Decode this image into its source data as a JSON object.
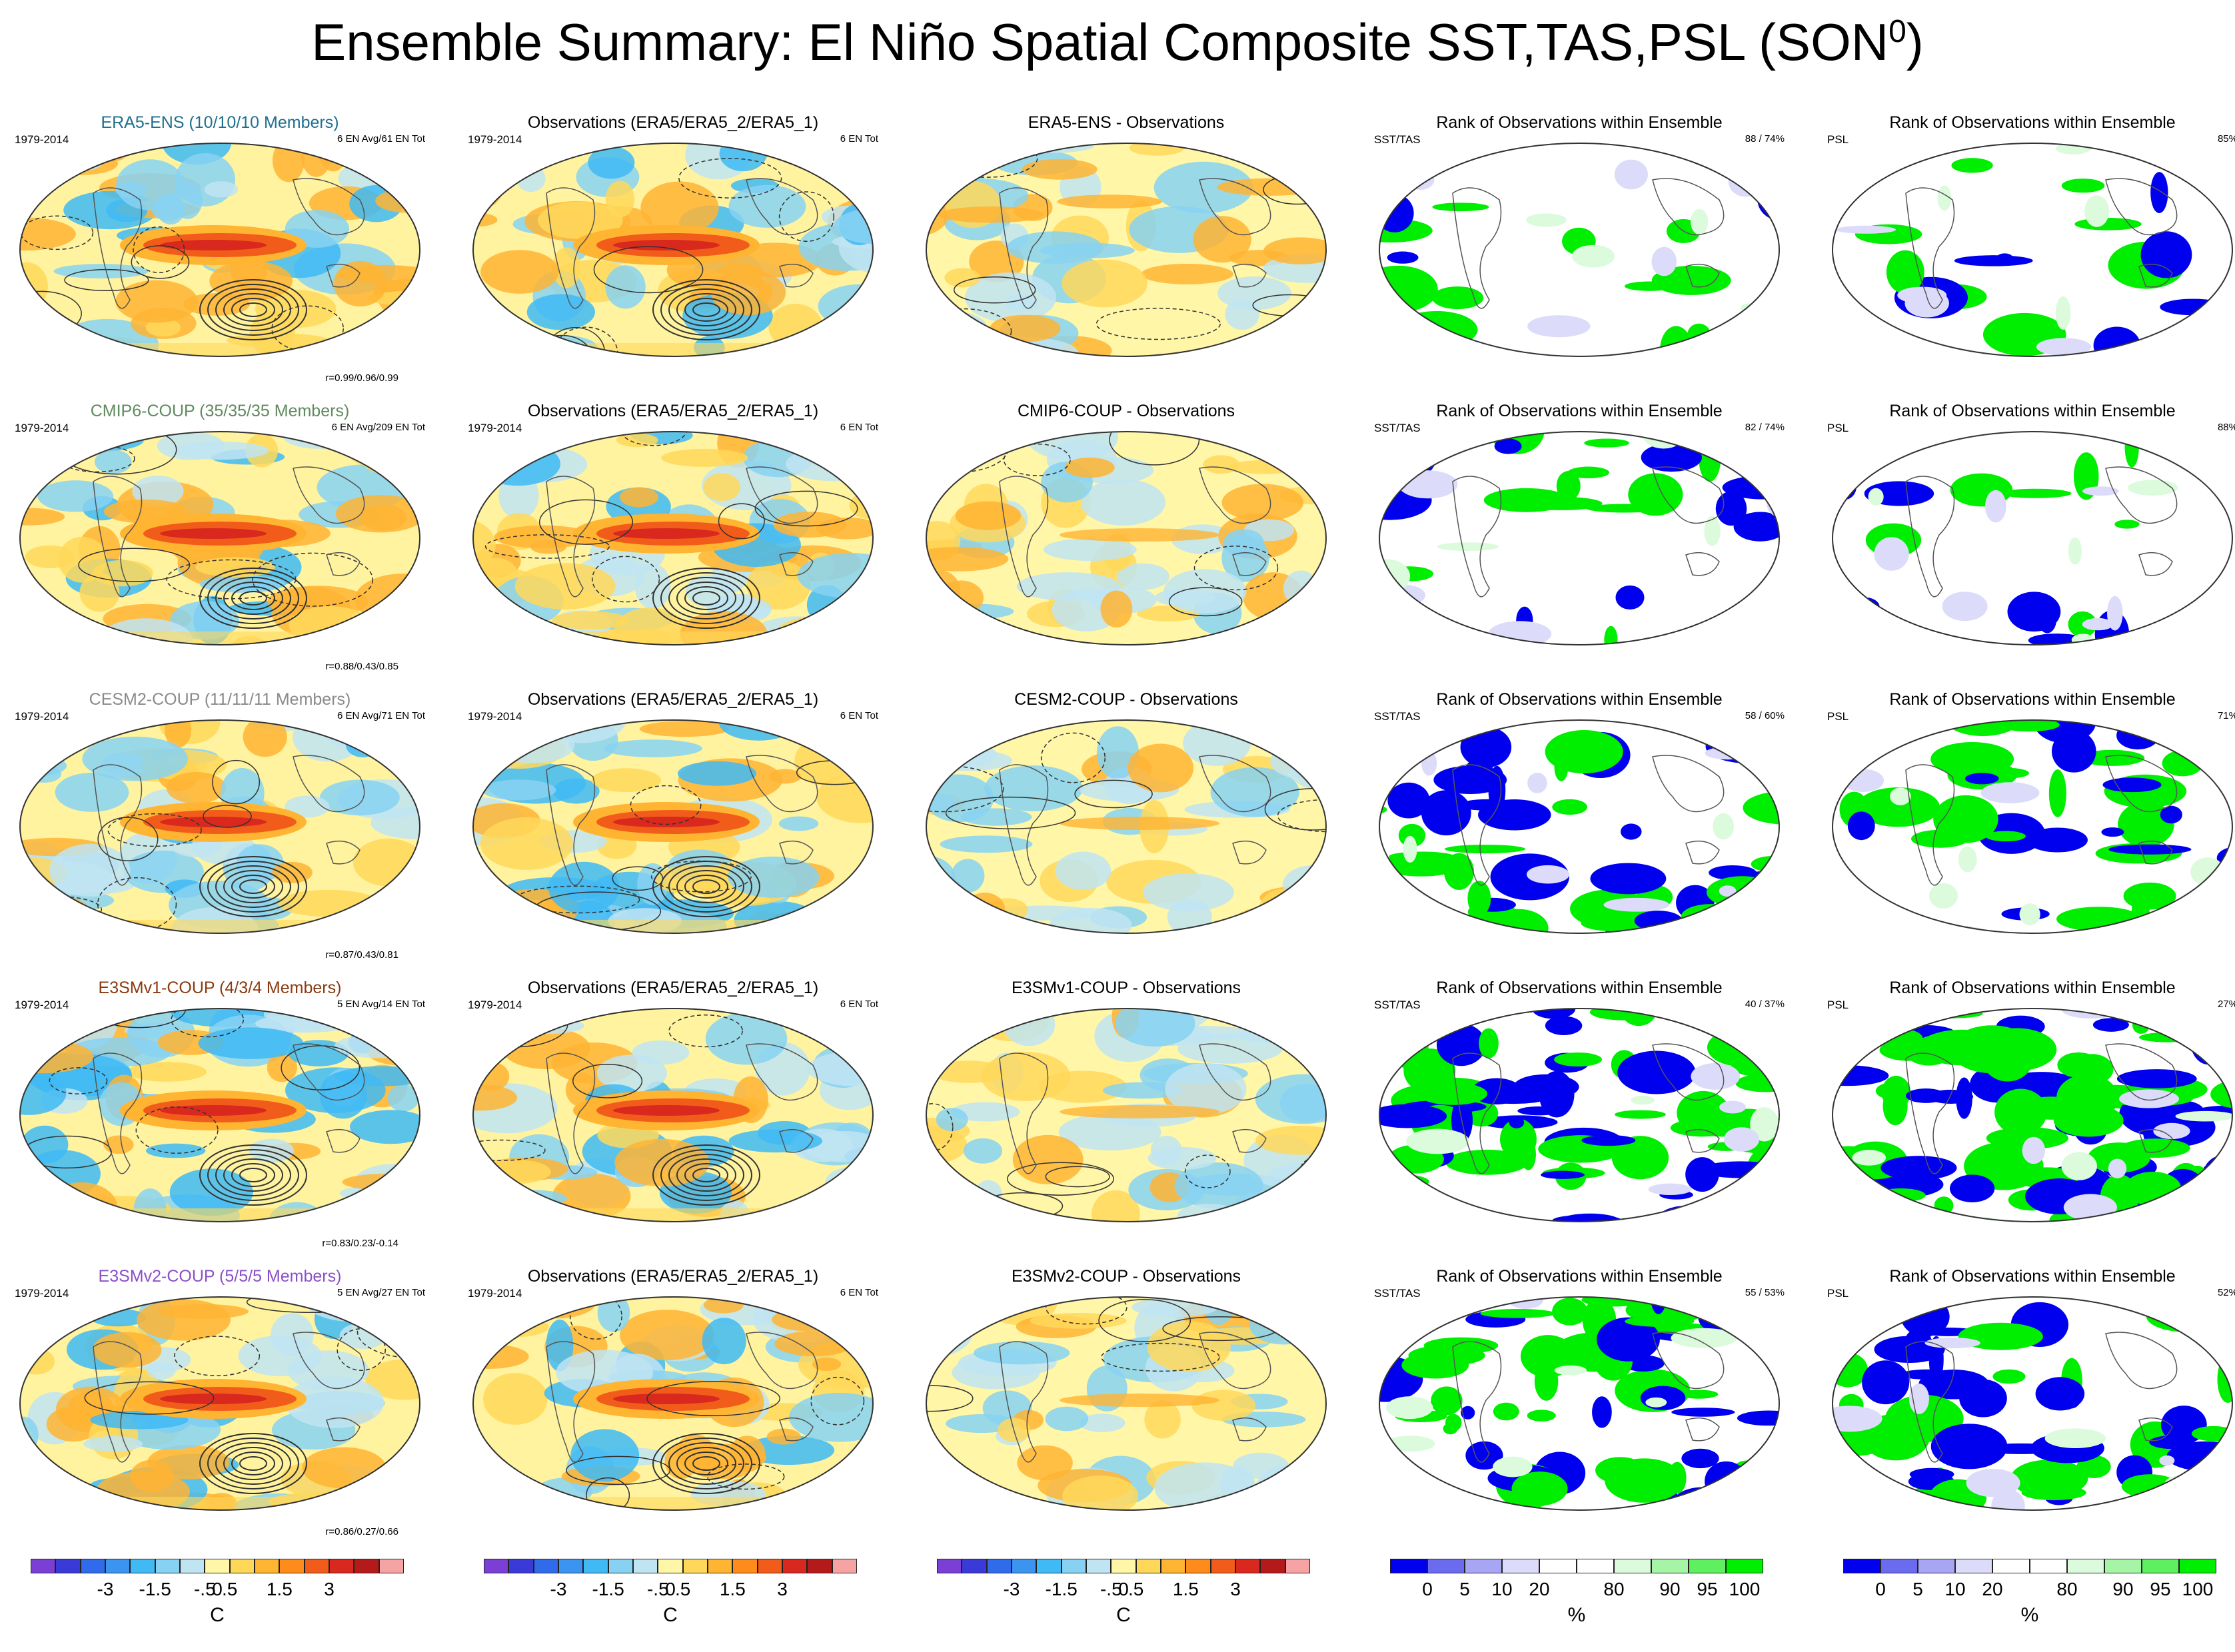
{
  "title": "Ensemble Summary: El Niño Spatial Composite SST,TAS,PSL (SON",
  "title_superscript": "0",
  "title_close": ")",
  "rows": [
    {
      "model_title": "ERA5-ENS (10/10/10 Members)",
      "model_color": "#1f6f8f",
      "model_period": "1979-2014",
      "model_events": "6 EN Avg/61 EN Tot",
      "model_corr": "r=0.99/0.96/0.99",
      "obs_title": "Observations (ERA5/ERA5_2/ERA5_1)",
      "obs_period": "1979-2014",
      "obs_events": "6 EN Tot",
      "diff_title": "ERA5-ENS - Observations",
      "rank_title": "Rank of Observations within Ensemble",
      "rank_sst_label": "SST/TAS",
      "rank_sst_pct": "88 /  74%",
      "rank_psl_label": "PSL",
      "rank_psl_pct": "85%"
    },
    {
      "model_title": "CMIP6-COUP (35/35/35 Members)",
      "model_color": "#5f8a5f",
      "model_period": "1979-2014",
      "model_events": "6 EN Avg/209 EN Tot",
      "model_corr": "r=0.88/0.43/0.85",
      "obs_title": "Observations (ERA5/ERA5_2/ERA5_1)",
      "obs_period": "1979-2014",
      "obs_events": "6 EN Tot",
      "diff_title": "CMIP6-COUP - Observations",
      "rank_title": "Rank of Observations within Ensemble",
      "rank_sst_label": "SST/TAS",
      "rank_sst_pct": "82 /  74%",
      "rank_psl_label": "PSL",
      "rank_psl_pct": "88%"
    },
    {
      "model_title": "CESM2-COUP (11/11/11 Members)",
      "model_color": "#8a8a8a",
      "model_period": "1979-2014",
      "model_events": "6 EN Avg/71 EN Tot",
      "model_corr": "r=0.87/0.43/0.81",
      "obs_title": "Observations (ERA5/ERA5_2/ERA5_1)",
      "obs_period": "1979-2014",
      "obs_events": "6 EN Tot",
      "diff_title": "CESM2-COUP - Observations",
      "rank_title": "Rank of Observations within Ensemble",
      "rank_sst_label": "SST/TAS",
      "rank_sst_pct": "58 /  60%",
      "rank_psl_label": "PSL",
      "rank_psl_pct": "71%"
    },
    {
      "model_title": "E3SMv1-COUP (4/3/4 Members)",
      "model_color": "#8b3a0f",
      "model_period": "1979-2014",
      "model_events": "5 EN Avg/14 EN Tot",
      "model_corr": "r=0.83/0.23/-0.14",
      "obs_title": "Observations (ERA5/ERA5_2/ERA5_1)",
      "obs_period": "1979-2014",
      "obs_events": "6 EN Tot",
      "diff_title": "E3SMv1-COUP - Observations",
      "rank_title": "Rank of Observations within Ensemble",
      "rank_sst_label": "SST/TAS",
      "rank_sst_pct": "40 /  37%",
      "rank_psl_label": "PSL",
      "rank_psl_pct": "27%"
    },
    {
      "model_title": "E3SMv2-COUP (5/5/5 Members)",
      "model_color": "#8a4fc8",
      "model_period": "1979-2014",
      "model_events": "5 EN Avg/27 EN Tot",
      "model_corr": "r=0.86/0.27/0.66",
      "obs_title": "Observations (ERA5/ERA5_2/ERA5_1)",
      "obs_period": "1979-2014",
      "obs_events": "6 EN Tot",
      "diff_title": "E3SMv2-COUP - Observations",
      "rank_title": "Rank of Observations within Ensemble",
      "rank_sst_label": "SST/TAS",
      "rank_sst_pct": "55 /  53%",
      "rank_psl_label": "PSL",
      "rank_psl_pct": "52%"
    }
  ],
  "colorbar_temp": {
    "labels": [
      "-3",
      "-1.5",
      "-.5",
      "0",
      ".5",
      "1.5",
      "3"
    ],
    "unit": "C",
    "colors": [
      "#7b3fd6",
      "#3a3ad9",
      "#2f6bea",
      "#3b95f0",
      "#3fbaf5",
      "#87d2f2",
      "#bfe4f2",
      "#fff6a8",
      "#ffd85a",
      "#ffb432",
      "#ff8c1a",
      "#f25c1a",
      "#d9281e",
      "#b51a1a",
      "#f5a3a3"
    ]
  },
  "colorbar_rank": {
    "labels": [
      "0",
      "5",
      "10",
      "20",
      "80",
      "90",
      "95",
      "100"
    ],
    "unit": "%",
    "colors": [
      "#0000ee",
      "#6b6bf0",
      "#a6a6f5",
      "#dcdcfa",
      "#ffffff",
      "#ffffff",
      "#dcfadc",
      "#a6f5a6",
      "#5ef05e",
      "#00ee00"
    ]
  }
}
